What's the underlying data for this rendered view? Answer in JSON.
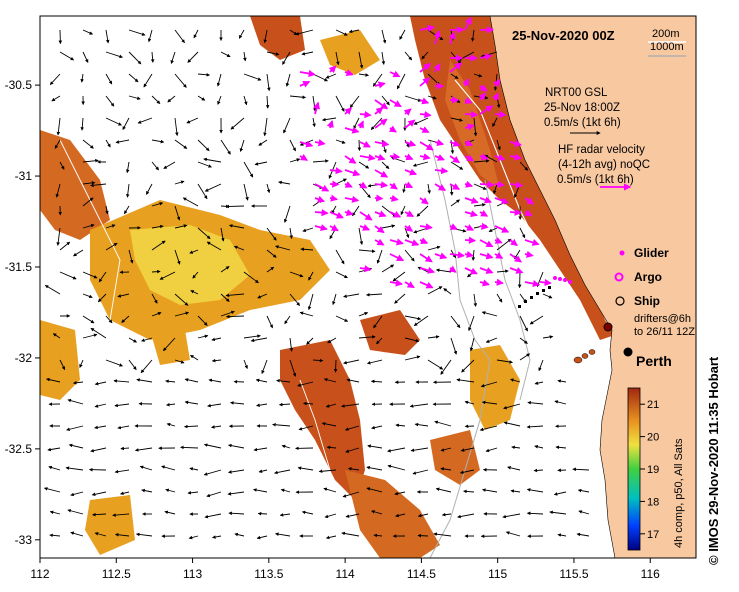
{
  "title": "25-Nov-2020 00Z",
  "isobaths": {
    "shallow": "200m",
    "deep": "1000m"
  },
  "model_arrows": {
    "label": "NRT00 GSL",
    "time": "25-Nov 18:00Z",
    "scale": "0.5m/s (1kt 6h)"
  },
  "hf_radar": {
    "line1": "HF radar velocity",
    "line2": "(4-12h avg) noQC",
    "scale": "0.5m/s (1kt 6h)"
  },
  "legend": {
    "glider": "Glider",
    "argo": "Argo",
    "ship": "Ship",
    "drifters_line1": "drifters@6h",
    "drifters_line2": "to 26/11 12Z"
  },
  "city": "Perth",
  "colorbar": {
    "label": "4h comp, p50, All Sats",
    "ticks": [
      "21",
      "20",
      "19",
      "18",
      "17"
    ],
    "min": 16.5,
    "max": 21.5
  },
  "credit": "© IMOS 29-Nov-2020 11:35 Hobart",
  "axes": {
    "x_ticks": [
      "112",
      "112.5",
      "113",
      "113.5",
      "114",
      "114.5",
      "115",
      "115.5",
      "116"
    ],
    "y_ticks": [
      "-30.5",
      "-31",
      "-31.5",
      "-32",
      "-32.5",
      "-33"
    ],
    "lon_range": [
      112,
      116.3
    ],
    "lat_range": [
      -33.1,
      -30.12
    ]
  },
  "colors": {
    "land": "#f8c8a0",
    "sst_warm": "#c8501a",
    "sst_mid": "#e8a020",
    "sst_cool": "#f0d040",
    "radar": "#ff00ff"
  }
}
